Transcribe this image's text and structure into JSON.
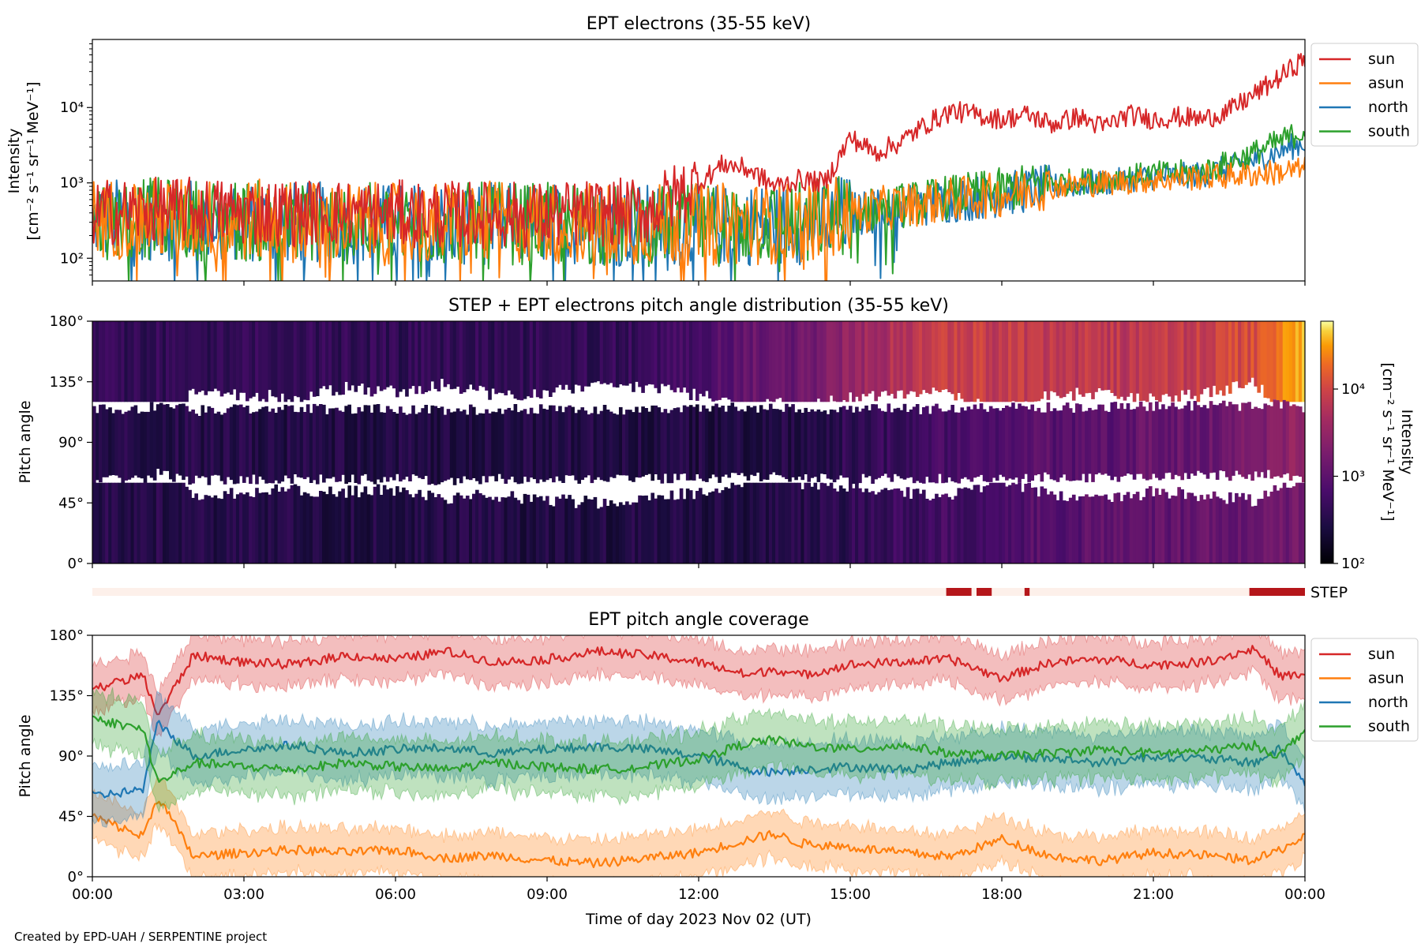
{
  "figure": {
    "credit": "Created by EPD-UAH / SERPENTINE project",
    "x_label": "Time of day 2023 Nov 02 (UT)",
    "x_ticks": [
      "00:00",
      "03:00",
      "06:00",
      "09:00",
      "12:00",
      "15:00",
      "18:00",
      "21:00",
      "00:00"
    ]
  },
  "colors": {
    "sun": "#d62728",
    "asun": "#ff7f0e",
    "north": "#1f77b4",
    "south": "#2ca02c",
    "step_bar_off": "#fdf0ea",
    "step_bar_on": "#b5161a"
  },
  "chart_data": [
    {
      "type": "line",
      "title": "EPT electrons (35-55 keV)",
      "ylabel": [
        "Intensity",
        "[cm⁻² s⁻¹ sr⁻¹ MeV⁻¹]"
      ],
      "yscale": "log",
      "ylim": [
        50,
        80000
      ],
      "y_ticks": [
        "10²",
        "10³",
        "10⁴"
      ],
      "y_tick_values": [
        100,
        1000,
        10000
      ],
      "xlim_hours": [
        0,
        24
      ],
      "legend": "right",
      "series": [
        {
          "name": "sun",
          "x": [
            0,
            1,
            2,
            3,
            4,
            5,
            6,
            7,
            8,
            9,
            10,
            11,
            12,
            12.5,
            13,
            13.5,
            14,
            14.5,
            15,
            15.5,
            16,
            16.5,
            17,
            17.5,
            18,
            18.5,
            19,
            19.5,
            20,
            20.5,
            21,
            21.5,
            22,
            22.5,
            23,
            23.5,
            24
          ],
          "y": [
            400,
            420,
            430,
            410,
            400,
            400,
            390,
            380,
            380,
            370,
            400,
            420,
            1000,
            1800,
            1500,
            900,
            1100,
            1000,
            4000,
            2500,
            3500,
            6000,
            9000,
            8000,
            7000,
            8000,
            6000,
            7500,
            5500,
            8000,
            7000,
            7500,
            7000,
            9000,
            15000,
            25000,
            45000
          ]
        },
        {
          "name": "asun",
          "x": [
            0,
            2,
            4,
            6,
            8,
            10,
            12,
            14,
            15,
            16,
            17,
            18,
            19,
            20,
            21,
            22,
            23,
            24
          ],
          "y": [
            350,
            330,
            310,
            280,
            300,
            290,
            280,
            300,
            400,
            500,
            600,
            700,
            900,
            1000,
            1100,
            1200,
            1300,
            1500
          ]
        },
        {
          "name": "north",
          "x": [
            0,
            2,
            4,
            6,
            8,
            10,
            12,
            14,
            15,
            16,
            17,
            18,
            19,
            20,
            21,
            22,
            23,
            24
          ],
          "y": [
            330,
            320,
            300,
            280,
            290,
            280,
            270,
            290,
            380,
            480,
            580,
            700,
            900,
            1000,
            1200,
            1300,
            2000,
            3500
          ]
        },
        {
          "name": "south",
          "x": [
            0,
            2,
            4,
            6,
            8,
            10,
            12,
            14,
            15,
            16,
            17,
            18,
            19,
            20,
            21,
            22,
            23,
            24
          ],
          "y": [
            340,
            330,
            300,
            280,
            290,
            280,
            270,
            300,
            400,
            500,
            650,
            800,
            1000,
            1100,
            1300,
            1400,
            2500,
            5000
          ]
        }
      ]
    },
    {
      "type": "heatmap",
      "title": "STEP + EPT electrons pitch angle distribution (35-55 keV)",
      "ylabel": "Pitch angle",
      "y_ticks": [
        "0°",
        "45°",
        "90°",
        "135°",
        "180°"
      ],
      "y_tick_values": [
        0,
        45,
        90,
        135,
        180
      ],
      "ylim": [
        0,
        180
      ],
      "xlim_hours": [
        0,
        24
      ],
      "colorbar": {
        "label": [
          "Intensity",
          "[cm⁻² s⁻¹ sr⁻¹ MeV⁻¹]"
        ],
        "scale": "log",
        "range": [
          100,
          60000
        ],
        "ticks": [
          "10²",
          "10³",
          "10⁴"
        ],
        "tick_values": [
          100,
          1000,
          10000
        ],
        "colormap": "inferno"
      },
      "hours": [
        0,
        2,
        4,
        6,
        8,
        10,
        12,
        13,
        14,
        15,
        16,
        17,
        18,
        19,
        20,
        21,
        22,
        23,
        24
      ],
      "sun_band_intensity": [
        400,
        420,
        420,
        400,
        390,
        400,
        600,
        1200,
        1300,
        3000,
        6000,
        9000,
        8000,
        7000,
        7000,
        7500,
        8000,
        12000,
        40000
      ],
      "north_band_intensity": [
        330,
        320,
        300,
        290,
        290,
        290,
        280,
        290,
        300,
        400,
        500,
        650,
        750,
        900,
        1000,
        1200,
        1300,
        2000,
        3000
      ],
      "asun_band_intensity": [
        330,
        320,
        300,
        290,
        290,
        290,
        280,
        290,
        300,
        380,
        500,
        600,
        700,
        900,
        1000,
        1100,
        1200,
        1300,
        1500
      ]
    },
    {
      "type": "bar",
      "label": "STEP",
      "xlim_hours": [
        0,
        24
      ],
      "active_intervals_hours": [
        [
          16.9,
          17.4
        ],
        [
          17.5,
          17.8
        ],
        [
          18.45,
          18.55
        ],
        [
          22.9,
          24.0
        ]
      ]
    },
    {
      "type": "area",
      "title": "EPT pitch angle coverage",
      "ylabel": "Pitch angle",
      "y_ticks": [
        "0°",
        "45°",
        "90°",
        "135°",
        "180°"
      ],
      "y_tick_values": [
        0,
        45,
        90,
        135,
        180
      ],
      "ylim": [
        0,
        180
      ],
      "xlim_hours": [
        0,
        24
      ],
      "legend": "right",
      "series": [
        {
          "name": "sun",
          "x": [
            0,
            1,
            1.3,
            2,
            3,
            4,
            5,
            6,
            7,
            8,
            9,
            10,
            11,
            12,
            13,
            13.5,
            14,
            15,
            16,
            17,
            18,
            19,
            20,
            21,
            22,
            23,
            23.5,
            24
          ],
          "mean": [
            140,
            150,
            120,
            165,
            160,
            158,
            165,
            162,
            168,
            160,
            162,
            168,
            165,
            160,
            150,
            155,
            150,
            158,
            160,
            162,
            148,
            160,
            162,
            158,
            160,
            170,
            150,
            150
          ],
          "halfwidth": [
            17,
            17,
            17,
            17,
            17,
            17,
            17,
            17,
            17,
            17,
            17,
            17,
            17,
            17,
            17,
            17,
            17,
            17,
            17,
            17,
            17,
            17,
            17,
            17,
            17,
            17,
            17,
            17
          ]
        },
        {
          "name": "asun",
          "x": [
            0,
            1,
            1.3,
            2,
            3,
            4,
            5,
            6,
            7,
            8,
            9,
            10,
            11,
            12,
            13,
            13.5,
            14,
            15,
            16,
            17,
            18,
            19,
            20,
            21,
            22,
            23,
            23.5,
            24
          ],
          "mean": [
            45,
            30,
            60,
            15,
            18,
            20,
            18,
            20,
            14,
            16,
            12,
            10,
            14,
            18,
            28,
            32,
            25,
            22,
            18,
            15,
            28,
            15,
            12,
            18,
            16,
            12,
            20,
            30
          ],
          "halfwidth": [
            17,
            17,
            17,
            17,
            17,
            17,
            17,
            17,
            17,
            17,
            17,
            17,
            17,
            17,
            17,
            17,
            17,
            17,
            17,
            17,
            17,
            17,
            17,
            17,
            17,
            17,
            17,
            17
          ]
        },
        {
          "name": "north",
          "x": [
            0,
            1,
            1.3,
            2,
            3,
            4,
            5,
            6,
            7,
            8,
            9,
            10,
            11,
            12,
            13,
            13.5,
            14,
            15,
            16,
            17,
            18,
            19,
            20,
            21,
            22,
            23,
            23.5,
            24
          ],
          "mean": [
            60,
            65,
            115,
            90,
            95,
            98,
            92,
            95,
            96,
            92,
            95,
            97,
            95,
            90,
            80,
            78,
            80,
            82,
            80,
            85,
            90,
            88,
            85,
            90,
            88,
            85,
            95,
            70
          ],
          "halfwidth": [
            20,
            20,
            20,
            20,
            20,
            20,
            20,
            20,
            20,
            20,
            20,
            20,
            20,
            20,
            20,
            20,
            20,
            20,
            20,
            20,
            20,
            20,
            20,
            20,
            20,
            20,
            20,
            20
          ]
        },
        {
          "name": "south",
          "x": [
            0,
            1,
            1.3,
            2,
            3,
            4,
            5,
            6,
            7,
            8,
            9,
            10,
            11,
            12,
            13,
            13.5,
            14,
            15,
            16,
            17,
            18,
            19,
            20,
            21,
            22,
            23,
            23.5,
            24
          ],
          "mean": [
            118,
            110,
            70,
            85,
            82,
            80,
            85,
            82,
            80,
            85,
            82,
            80,
            82,
            88,
            100,
            102,
            98,
            95,
            98,
            92,
            90,
            92,
            95,
            92,
            94,
            98,
            90,
            110
          ],
          "halfwidth": [
            20,
            20,
            20,
            20,
            20,
            20,
            20,
            20,
            20,
            20,
            20,
            20,
            20,
            20,
            20,
            20,
            20,
            20,
            20,
            20,
            20,
            20,
            20,
            20,
            20,
            20,
            20,
            20
          ]
        }
      ]
    }
  ]
}
